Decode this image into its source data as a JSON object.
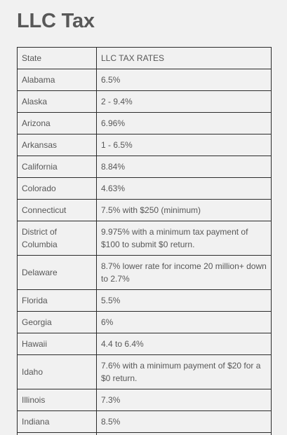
{
  "page": {
    "title": "LLC Tax"
  },
  "table": {
    "headers": [
      "State",
      "LLC TAX RATES"
    ],
    "rows": [
      {
        "state": "Alabama",
        "rate": "6.5%"
      },
      {
        "state": "Alaska",
        "rate": "2 - 9.4%"
      },
      {
        "state": "Arizona",
        "rate": "6.96%"
      },
      {
        "state": "Arkansas",
        "rate": "1 - 6.5%"
      },
      {
        "state": "California",
        "rate": "8.84%"
      },
      {
        "state": "Colorado",
        "rate": "4.63%"
      },
      {
        "state": "Connecticut",
        "rate": "7.5% with $250 (minimum)"
      },
      {
        "state": "District of Columbia",
        "rate": "9.975% with a minimum tax payment of $100 to submit $0 return."
      },
      {
        "state": "Delaware",
        "rate": "8.7% lower rate for income 20 million+ down to 2.7%"
      },
      {
        "state": "Florida",
        "rate": "5.5%"
      },
      {
        "state": "Georgia",
        "rate": "6%"
      },
      {
        "state": "Hawaii",
        "rate": "4.4 to 6.4%"
      },
      {
        "state": "Idaho",
        "rate": "7.6% with a minimum payment of $20 for a $0 return."
      },
      {
        "state": "Illinois",
        "rate": "7.3%"
      },
      {
        "state": "Indiana",
        "rate": "8.5%"
      }
    ]
  }
}
